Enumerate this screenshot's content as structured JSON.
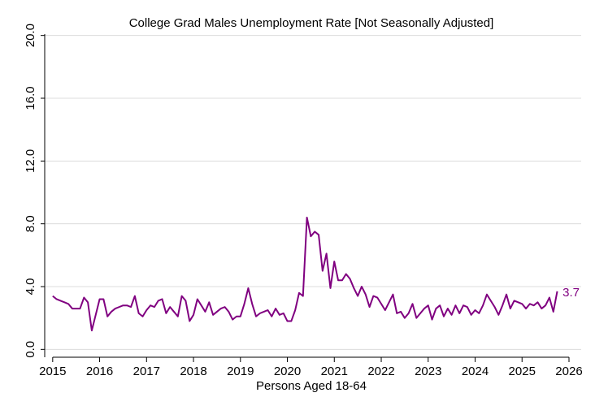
{
  "chart_data": {
    "type": "line",
    "title": "College Grad Males Unemployment Rate [Not Seasonally Adjusted]",
    "x_label": "Persons Aged 18-64",
    "x": [
      2015,
      2015.083,
      2015.167,
      2015.25,
      2015.333,
      2015.417,
      2015.5,
      2015.583,
      2015.667,
      2015.75,
      2015.833,
      2015.917,
      2016,
      2016.083,
      2016.167,
      2016.25,
      2016.333,
      2016.417,
      2016.5,
      2016.583,
      2016.667,
      2016.75,
      2016.833,
      2016.917,
      2017,
      2017.083,
      2017.167,
      2017.25,
      2017.333,
      2017.417,
      2017.5,
      2017.583,
      2017.667,
      2017.75,
      2017.833,
      2017.917,
      2018,
      2018.083,
      2018.167,
      2018.25,
      2018.333,
      2018.417,
      2018.5,
      2018.583,
      2018.667,
      2018.75,
      2018.833,
      2018.917,
      2019,
      2019.083,
      2019.167,
      2019.25,
      2019.333,
      2019.417,
      2019.5,
      2019.583,
      2019.667,
      2019.75,
      2019.833,
      2019.917,
      2020,
      2020.083,
      2020.167,
      2020.25,
      2020.333,
      2020.417,
      2020.5,
      2020.583,
      2020.667,
      2020.75,
      2020.833,
      2020.917,
      2021,
      2021.083,
      2021.167,
      2021.25,
      2021.333,
      2021.417,
      2021.5,
      2021.583,
      2021.667,
      2021.75,
      2021.833,
      2021.917,
      2022,
      2022.083,
      2022.167,
      2022.25,
      2022.333,
      2022.417,
      2022.5,
      2022.583,
      2022.667,
      2022.75,
      2022.833,
      2022.917,
      2023,
      2023.083,
      2023.167,
      2023.25,
      2023.333,
      2023.417,
      2023.5,
      2023.583,
      2023.667,
      2023.75,
      2023.833,
      2023.917,
      2024,
      2024.083,
      2024.167,
      2024.25,
      2024.333,
      2024.417,
      2024.5,
      2024.583,
      2024.667,
      2024.75,
      2024.833,
      2024.917,
      2025,
      2025.083,
      2025.167,
      2025.25,
      2025.333,
      2025.417,
      2025.5,
      2025.583,
      2025.667,
      2025.75
    ],
    "series": [
      {
        "name": "Unemployment Rate",
        "color": "#800080",
        "values": [
          3.4,
          3.2,
          3.1,
          3.0,
          2.9,
          2.6,
          2.6,
          2.6,
          3.3,
          3.0,
          1.2,
          2.2,
          3.2,
          3.2,
          2.1,
          2.4,
          2.6,
          2.7,
          2.8,
          2.8,
          2.7,
          3.4,
          2.3,
          2.1,
          2.5,
          2.8,
          2.7,
          3.1,
          3.2,
          2.3,
          2.7,
          2.4,
          2.1,
          3.4,
          3.1,
          1.8,
          2.2,
          3.2,
          2.8,
          2.4,
          3.0,
          2.2,
          2.4,
          2.6,
          2.7,
          2.4,
          1.9,
          2.1,
          2.1,
          2.9,
          3.9,
          2.9,
          2.1,
          2.3,
          2.4,
          2.5,
          2.1,
          2.6,
          2.2,
          2.3,
          1.8,
          1.8,
          2.5,
          3.6,
          3.4,
          8.4,
          7.2,
          7.5,
          7.3,
          5.0,
          6.1,
          3.9,
          5.6,
          4.4,
          4.4,
          4.8,
          4.5,
          3.9,
          3.4,
          4.0,
          3.5,
          2.7,
          3.4,
          3.3,
          2.9,
          2.5,
          3.0,
          3.5,
          2.3,
          2.4,
          2.0,
          2.3,
          2.9,
          2.0,
          2.3,
          2.6,
          2.8,
          1.9,
          2.6,
          2.8,
          2.1,
          2.6,
          2.2,
          2.8,
          2.3,
          2.8,
          2.7,
          2.2,
          2.5,
          2.3,
          2.8,
          3.5,
          3.1,
          2.7,
          2.2,
          2.8,
          3.5,
          2.6,
          3.1,
          3.0,
          2.9,
          2.6,
          2.9,
          2.8,
          3.0,
          2.6,
          2.8,
          3.3,
          2.4,
          3.7
        ]
      }
    ],
    "annotations": [
      {
        "text": "3.7"
      }
    ],
    "xlim": [
      2014.83,
      2026.26
    ],
    "xticks": [
      2015,
      2016,
      2017,
      2018,
      2019,
      2020,
      2021,
      2022,
      2023,
      2024,
      2025,
      2026
    ],
    "ylim": [
      -0.5,
      20.5
    ],
    "yticks": [
      {
        "value": 0,
        "label": "0.0"
      },
      {
        "value": 4,
        "label": "4.0"
      },
      {
        "value": 8,
        "label": "8.0"
      },
      {
        "value": 12,
        "label": "12.0"
      },
      {
        "value": 16,
        "label": "16.0"
      },
      {
        "value": 20,
        "label": "20.0"
      }
    ],
    "grid": true
  }
}
